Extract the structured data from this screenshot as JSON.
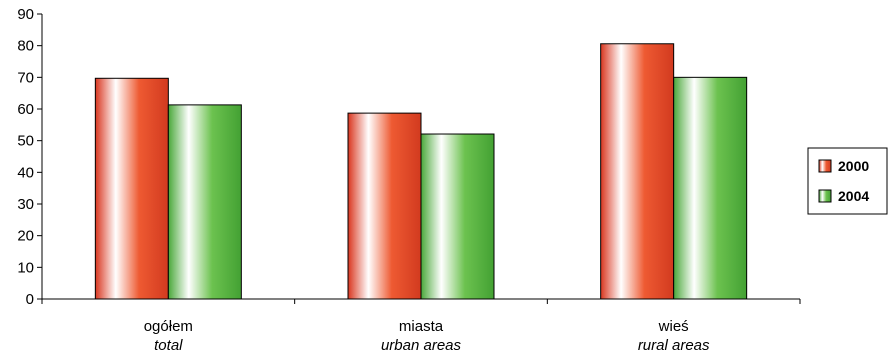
{
  "chart_data": {
    "type": "bar",
    "categories": [
      "ogółem",
      "miasta",
      "wieś"
    ],
    "categories_sub": [
      "total",
      "urban areas",
      "rural areas"
    ],
    "series": [
      {
        "name": "2000",
        "values": [
          69.7,
          58.7,
          80.6
        ],
        "color": "#e8432a"
      },
      {
        "name": "2004",
        "values": [
          61.3,
          52.1,
          70.0
        ],
        "color": "#58b743"
      }
    ],
    "ylim": [
      0,
      90
    ],
    "yticks": [
      "0",
      "10",
      "20",
      "30",
      "40",
      "50",
      "60",
      "70",
      "80",
      "90"
    ],
    "grid": false,
    "legend_position": "right"
  }
}
